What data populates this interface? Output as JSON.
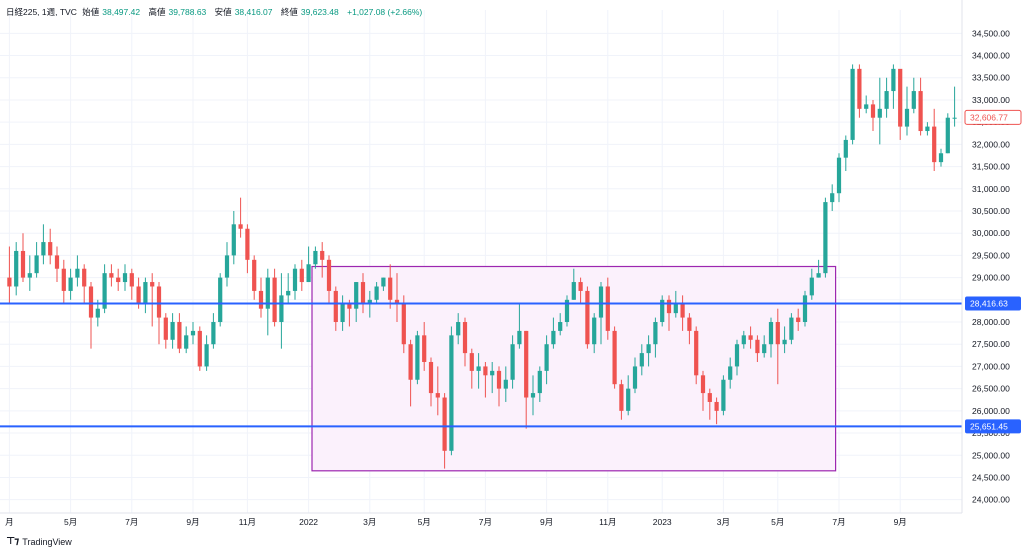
{
  "header": {
    "symbol": "日経225, 1週, TVC",
    "open_label": "始値",
    "open_value": "38,497.42",
    "high_label": "高値",
    "high_value": "39,788.63",
    "low_label": "安値",
    "low_value": "38,416.07",
    "close_label": "終値",
    "close_value": "39,623.48",
    "change": "+1,027.08 (+2.66%)"
  },
  "footer": {
    "brand": "TradingView",
    "logo": "tv-logo-icon"
  },
  "colors": {
    "up": "#26a69a",
    "down": "#ef5350",
    "line": "#2962ff",
    "range_border": "#9c27b0",
    "range_fill": "#fbf1fc"
  },
  "chart_data": {
    "type": "candlestick",
    "title": "日経225, 1週, TVC",
    "ylim": [
      23700,
      34800
    ],
    "y_axis": {
      "ticks": [
        24000,
        24500,
        25000,
        25500,
        26000,
        26500,
        27000,
        27500,
        28000,
        28500,
        29000,
        29500,
        30000,
        30500,
        31000,
        31500,
        32000,
        32500,
        33000,
        33500,
        34000,
        34500
      ],
      "tick_labels": [
        "24,000.00",
        "24,500.00",
        "25,000.00",
        "25,500.00",
        "26,000.00",
        "26,500.00",
        "27,000.00",
        "27,500.00",
        "28,000.00",
        "28,500.00",
        "29,000.00",
        "29,500.00",
        "30,000.00",
        "30,500.00",
        "31,000.00",
        "31,500.00",
        "32,000.00",
        "32,500.00",
        "33,000.00",
        "33,500.00",
        "34,000.00",
        "34,500.00"
      ]
    },
    "x_axis": {
      "labels": [
        {
          "index": 0,
          "text": "月"
        },
        {
          "index": 9,
          "text": "5月"
        },
        {
          "index": 18,
          "text": "7月"
        },
        {
          "index": 27,
          "text": "9月"
        },
        {
          "index": 35,
          "text": "11月"
        },
        {
          "index": 44,
          "text": "2022"
        },
        {
          "index": 53,
          "text": "3月"
        },
        {
          "index": 61,
          "text": "5月"
        },
        {
          "index": 70,
          "text": "7月"
        },
        {
          "index": 79,
          "text": "9月"
        },
        {
          "index": 88,
          "text": "11月"
        },
        {
          "index": 96,
          "text": "2023"
        },
        {
          "index": 105,
          "text": "3月"
        },
        {
          "index": 113,
          "text": "5月"
        },
        {
          "index": 122,
          "text": "7月"
        },
        {
          "index": 131,
          "text": "9月"
        }
      ]
    },
    "candles": [
      [
        29000,
        28800,
        29700,
        28400
      ],
      [
        28800,
        29600,
        29800,
        28600
      ],
      [
        29600,
        29000,
        30000,
        28900
      ],
      [
        29000,
        29100,
        29500,
        28700
      ],
      [
        29100,
        29500,
        29800,
        29000
      ],
      [
        29500,
        29800,
        30200,
        29300
      ],
      [
        29800,
        29500,
        30100,
        29300
      ],
      [
        29500,
        29200,
        29700,
        28900
      ],
      [
        29200,
        28700,
        29400,
        28400
      ],
      [
        28700,
        29000,
        29200,
        28500
      ],
      [
        29000,
        29200,
        29500,
        28800
      ],
      [
        29200,
        28800,
        29300,
        28400
      ],
      [
        28800,
        28100,
        28900,
        27400
      ],
      [
        28100,
        28300,
        28500,
        27900
      ],
      [
        28300,
        29100,
        29300,
        28200
      ],
      [
        29100,
        29000,
        29300,
        28800
      ],
      [
        29000,
        28900,
        29200,
        28700
      ],
      [
        28900,
        29100,
        29300,
        28700
      ],
      [
        29100,
        28800,
        29200,
        28500
      ],
      [
        28800,
        28400,
        29000,
        28300
      ],
      [
        28400,
        28900,
        29000,
        28200
      ],
      [
        28900,
        28800,
        29100,
        27900
      ],
      [
        28800,
        28100,
        28900,
        27500
      ],
      [
        28100,
        27600,
        28200,
        27400
      ],
      [
        27600,
        28000,
        28200,
        27400
      ],
      [
        28000,
        27400,
        28200,
        27300
      ],
      [
        27400,
        27700,
        27900,
        27300
      ],
      [
        27700,
        27800,
        28000,
        27500
      ],
      [
        27800,
        27000,
        27900,
        26900
      ],
      [
        27000,
        27500,
        27700,
        26900
      ],
      [
        27500,
        28000,
        28200,
        27400
      ],
      [
        28000,
        29000,
        29100,
        27900
      ],
      [
        29000,
        29500,
        29800,
        28800
      ],
      [
        29500,
        30200,
        30500,
        29300
      ],
      [
        30200,
        30100,
        30800,
        29900
      ],
      [
        30100,
        29400,
        30200,
        29100
      ],
      [
        29400,
        28700,
        29500,
        28500
      ],
      [
        28700,
        28300,
        29000,
        28100
      ],
      [
        28300,
        29000,
        29200,
        27700
      ],
      [
        29000,
        28000,
        29200,
        27900
      ],
      [
        28000,
        28600,
        29100,
        27400
      ],
      [
        28600,
        28700,
        29100,
        28400
      ],
      [
        28700,
        29200,
        29300,
        28500
      ],
      [
        29200,
        28900,
        29400,
        28700
      ],
      [
        28900,
        29300,
        29700,
        29100
      ],
      [
        29300,
        29600,
        29700,
        29200
      ],
      [
        29600,
        29400,
        29800,
        29000
      ],
      [
        29400,
        28700,
        29500,
        28400
      ],
      [
        28700,
        28000,
        28800,
        27800
      ],
      [
        28000,
        28400,
        28600,
        27800
      ],
      [
        28400,
        28300,
        28500,
        27900
      ],
      [
        28300,
        28900,
        28900,
        28000
      ],
      [
        28900,
        28400,
        29100,
        28200
      ],
      [
        28400,
        28500,
        28700,
        28100
      ],
      [
        28500,
        28800,
        28900,
        28400
      ],
      [
        28800,
        29000,
        29000,
        28700
      ],
      [
        29000,
        28500,
        29300,
        28300
      ],
      [
        28500,
        28400,
        29100,
        28000
      ],
      [
        28400,
        27500,
        28600,
        27300
      ],
      [
        27500,
        26700,
        27600,
        26100
      ],
      [
        26700,
        27700,
        27800,
        26600
      ],
      [
        27700,
        27100,
        28000,
        26900
      ],
      [
        27100,
        26400,
        27200,
        26100
      ],
      [
        26400,
        26300,
        27000,
        25900
      ],
      [
        26300,
        25100,
        26400,
        24700
      ],
      [
        25100,
        27700,
        27900,
        25000
      ],
      [
        27700,
        28000,
        28200,
        27500
      ],
      [
        28000,
        27300,
        28100,
        27000
      ],
      [
        27300,
        26900,
        27400,
        26500
      ],
      [
        26900,
        27000,
        27300,
        26500
      ],
      [
        27000,
        26800,
        27100,
        26300
      ],
      [
        26800,
        26900,
        27100,
        26400
      ],
      [
        26900,
        26500,
        27000,
        26100
      ],
      [
        26500,
        26700,
        27000,
        26200
      ],
      [
        26700,
        27500,
        27700,
        26500
      ],
      [
        27500,
        27800,
        28400,
        27400
      ],
      [
        27800,
        26300,
        27800,
        25600
      ],
      [
        26300,
        26400,
        26800,
        25900
      ],
      [
        26400,
        26900,
        27000,
        26200
      ],
      [
        26900,
        27500,
        27700,
        26600
      ],
      [
        27500,
        27800,
        28100,
        27400
      ],
      [
        27800,
        28000,
        28200,
        27700
      ],
      [
        28000,
        28500,
        28600,
        27900
      ],
      [
        28500,
        28900,
        29200,
        28500
      ],
      [
        28900,
        28700,
        29000,
        28400
      ],
      [
        28700,
        27500,
        28800,
        27400
      ],
      [
        27500,
        28100,
        28200,
        27300
      ],
      [
        28100,
        28800,
        28900,
        27500
      ],
      [
        28800,
        27800,
        29000,
        27600
      ],
      [
        27800,
        26600,
        27900,
        26500
      ],
      [
        26600,
        26000,
        26700,
        25800
      ],
      [
        26000,
        26500,
        26800,
        25900
      ],
      [
        26500,
        27000,
        27200,
        26400
      ],
      [
        27000,
        27300,
        27500,
        26800
      ],
      [
        27300,
        27500,
        27700,
        27000
      ],
      [
        27500,
        28000,
        28100,
        27200
      ],
      [
        28000,
        28500,
        28600,
        27900
      ],
      [
        28500,
        28200,
        28600,
        27800
      ],
      [
        28200,
        28400,
        28700,
        28100
      ],
      [
        28400,
        28100,
        28600,
        27800
      ],
      [
        28100,
        27800,
        28200,
        27500
      ],
      [
        27800,
        26800,
        27900,
        26600
      ],
      [
        26800,
        26400,
        26900,
        26000
      ],
      [
        26400,
        26200,
        26500,
        25800
      ],
      [
        26200,
        26000,
        26300,
        25700
      ],
      [
        26000,
        26700,
        26800,
        25900
      ],
      [
        26700,
        27000,
        27200,
        26500
      ],
      [
        27000,
        27500,
        27600,
        26800
      ],
      [
        27500,
        27700,
        27800,
        27400
      ],
      [
        27700,
        27600,
        27900,
        27400
      ],
      [
        27600,
        27300,
        27700,
        27100
      ],
      [
        27300,
        27500,
        27700,
        27200
      ],
      [
        27500,
        28000,
        28100,
        27200
      ],
      [
        28000,
        27500,
        28300,
        26600
      ],
      [
        27500,
        27600,
        27900,
        27300
      ],
      [
        27600,
        28100,
        28200,
        27500
      ],
      [
        28100,
        28000,
        28300,
        27800
      ],
      [
        28000,
        28600,
        28700,
        27900
      ],
      [
        28600,
        29000,
        29200,
        28500
      ],
      [
        29000,
        29100,
        29400,
        29000
      ],
      [
        29100,
        30700,
        30800,
        29000
      ],
      [
        30700,
        30900,
        31100,
        30500
      ],
      [
        30900,
        31700,
        31800,
        30700
      ],
      [
        31700,
        32100,
        32200,
        31400
      ],
      [
        32100,
        33700,
        33800,
        32000
      ],
      [
        33700,
        32800,
        33800,
        32600
      ],
      [
        32800,
        32900,
        33100,
        32700
      ],
      [
        32900,
        32600,
        33000,
        32300
      ],
      [
        32600,
        32800,
        33500,
        32000
      ],
      [
        32800,
        33200,
        33500,
        32600
      ],
      [
        33200,
        33700,
        33800,
        32800
      ],
      [
        33700,
        32400,
        33600,
        32100
      ],
      [
        32400,
        32800,
        33300,
        32200
      ],
      [
        32800,
        33200,
        33500,
        32700
      ],
      [
        33200,
        32300,
        33500,
        32200
      ],
      [
        32300,
        32400,
        32500,
        32200
      ],
      [
        32400,
        31600,
        32800,
        31400
      ],
      [
        31600,
        31800,
        31900,
        31500
      ],
      [
        31800,
        32600,
        32700,
        31800
      ],
      [
        32600,
        32600,
        33300,
        32400
      ]
    ],
    "horizontal_lines": [
      {
        "value": 28416.63,
        "label": "28,416.63"
      },
      {
        "value": 25651.45,
        "label": "25,651.45"
      }
    ],
    "price_label": {
      "value": 32606.77,
      "label": "32,606.77"
    },
    "range_box": {
      "start_index": 45,
      "end_index": 121,
      "top": 29250,
      "bottom": 24650
    }
  }
}
